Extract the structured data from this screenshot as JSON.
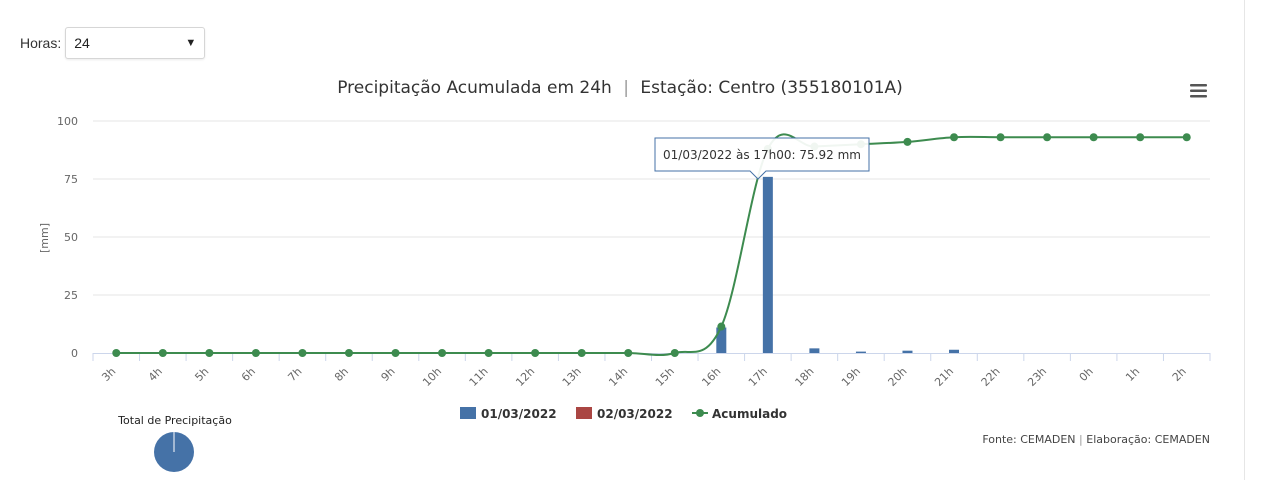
{
  "controls": {
    "hours_label": "Horas:",
    "hours_value": "24"
  },
  "chart_data": {
    "type": "bar",
    "title_main": "Precipitação Acumulada em 24h",
    "title_sep": "|",
    "title_station": "Estação: Centro (355180101A)",
    "ylabel": "[mm]",
    "xlabel": "",
    "ylim": [
      0,
      100
    ],
    "yticks": [
      0,
      25,
      50,
      75,
      100
    ],
    "grid": true,
    "categories": [
      "3h",
      "4h",
      "5h",
      "6h",
      "7h",
      "8h",
      "9h",
      "10h",
      "11h",
      "12h",
      "13h",
      "14h",
      "15h",
      "16h",
      "17h",
      "18h",
      "19h",
      "20h",
      "21h",
      "22h",
      "23h",
      "0h",
      "1h",
      "2h"
    ],
    "series": [
      {
        "name": "01/03/2022",
        "kind": "bar",
        "color": "#4572a7",
        "values": [
          0,
          0,
          0,
          0,
          0,
          0,
          0,
          0,
          0,
          0,
          0,
          0,
          0,
          11,
          75.92,
          2,
          0.6,
          1,
          1.4,
          0,
          0,
          0,
          0,
          0
        ]
      },
      {
        "name": "02/03/2022",
        "kind": "bar",
        "color": "#aa4643",
        "values": [
          0,
          0,
          0,
          0,
          0,
          0,
          0,
          0,
          0,
          0,
          0,
          0,
          0,
          0,
          0,
          0,
          0,
          0,
          0,
          0,
          0,
          0,
          0,
          0
        ]
      },
      {
        "name": "Acumulado",
        "kind": "line",
        "color": "#3d8b4f",
        "values": [
          0,
          0,
          0,
          0,
          0,
          0,
          0,
          0,
          0,
          0,
          0,
          0,
          0,
          11.4,
          88,
          89,
          90,
          91,
          93,
          93,
          93,
          93,
          93,
          93
        ]
      }
    ],
    "tooltip": {
      "category": "17h",
      "text": "01/03/2022 às 17h00: 75.92 mm"
    },
    "legend_position": "bottom-center",
    "pie": {
      "title": "Total de Precipitação",
      "color": "#4572a7"
    },
    "credit": {
      "source": "Fonte: CEMADEN",
      "sep": "|",
      "made_by": "Elaboração: CEMADEN"
    }
  }
}
